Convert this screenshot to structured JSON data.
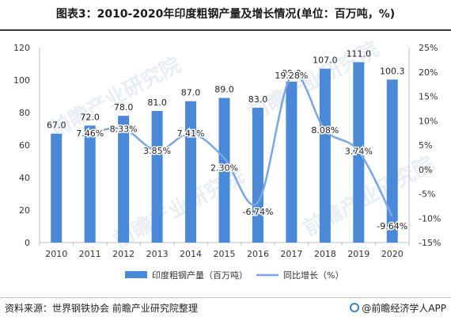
{
  "title": "图表3：2010-2020年印度粗钢产量及增长情况(单位：百万吨，%)",
  "source": "资料来源：世界钢铁协会 前瞻产业研究院整理",
  "brand": "@前瞻经济学人APP",
  "watermark": "前瞻产业研究院",
  "colors": {
    "bar": "#4a89d8",
    "line": "#7aa6e3",
    "axis": "#bfbfbf",
    "text": "#333333"
  },
  "chart_data": {
    "type": "bar",
    "categories": [
      "2010",
      "2011",
      "2012",
      "2013",
      "2014",
      "2015",
      "2016",
      "2017",
      "2018",
      "2019",
      "2020"
    ],
    "series": [
      {
        "name": "印度粗钢产量（百万吨）",
        "type": "bar",
        "axis": "left",
        "values": [
          67.0,
          72.0,
          78.0,
          81.0,
          87.0,
          89.0,
          83.0,
          99.0,
          107.0,
          111.0,
          100.3
        ],
        "labels": [
          "67.0",
          "72.0",
          "78.0",
          "81.0",
          "87.0",
          "89.0",
          "83.0",
          "99.0",
          "107.0",
          "111.0",
          "100.3"
        ]
      },
      {
        "name": "同比增长（%）",
        "type": "line",
        "axis": "right",
        "values": [
          null,
          7.46,
          8.33,
          3.85,
          7.41,
          2.3,
          -6.74,
          19.28,
          8.08,
          3.74,
          -9.64
        ],
        "labels": [
          "",
          "7.46%",
          "8.33%",
          "3.85%",
          "7.41%",
          "2.30%",
          "-6.74%",
          "19.28%",
          "8.08%",
          "3.74%",
          "-9.64%"
        ]
      }
    ],
    "y_left": {
      "lim": [
        0,
        120
      ],
      "ticks": [
        "0",
        "20",
        "40",
        "60",
        "80",
        "100",
        "120"
      ]
    },
    "y_right": {
      "lim": [
        -15,
        25
      ],
      "ticks": [
        "-15%",
        "-10%",
        "-5%",
        "0%",
        "5%",
        "10%",
        "15%",
        "20%",
        "25%"
      ]
    },
    "grid": false,
    "legend_position": "bottom"
  }
}
